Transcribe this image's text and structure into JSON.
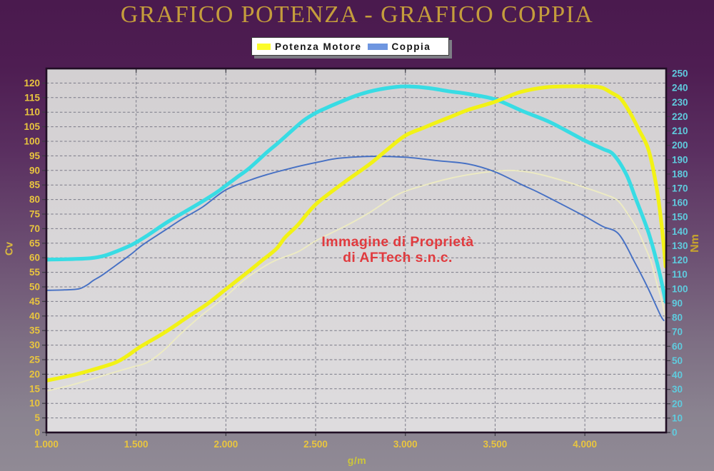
{
  "title": "GRAFICO POTENZA - GRAFICO COPPIA",
  "legend": {
    "items": [
      {
        "label": "Potenza Motore",
        "swatch_color": "#FCFC2A"
      },
      {
        "label": "Coppia",
        "swatch_color": "#6E96E0"
      }
    ]
  },
  "watermark": {
    "line1": "Immagine di Proprietà",
    "line2": "di AFTech s.n.c.",
    "color": "#E13B3F"
  },
  "colors": {
    "background_top": "#4A1A4E",
    "background_bottom": "#908A95",
    "plot_background_top": "#D3D0D2",
    "plot_background_bottom": "#DEDCDE",
    "plot_border": "#200E24",
    "gridline": "#7A7A87",
    "tick": "#3A3A42",
    "left_axis_labels": "#E9C53E",
    "right_axis_labels": "#5FCBDE",
    "x_axis_labels": "#E9C53E",
    "title_text": "#C59D3C"
  },
  "chart_data": {
    "type": "line",
    "title": "GRAFICO POTENZA - GRAFICO COPPIA",
    "xlabel": "g/m",
    "ylabel_left": "Cv",
    "ylabel_right": "Nm",
    "xlim": [
      1000,
      4453
    ],
    "ylim_left": [
      0,
      125
    ],
    "ylim_right": [
      0,
      253.5
    ],
    "x_tick_values": [
      1000,
      1500,
      2000,
      2500,
      3000,
      3500,
      4000
    ],
    "x_tick_labels": [
      "1.000",
      "1.500",
      "2.000",
      "2.500",
      "3.000",
      "3.500",
      "4.000"
    ],
    "left_ticks": {
      "min": 0,
      "max": 120,
      "step": 5
    },
    "right_ticks": {
      "min": 0,
      "max": 250,
      "step": 10
    },
    "grid": {
      "x_step": 500,
      "y_left_step": 5,
      "style": "dashed"
    },
    "legend_position": "top-center",
    "series": [
      {
        "id": "potenza-originale",
        "legend": "",
        "axis": "left",
        "unit": "Cv",
        "color": "#EDEBC2",
        "width": 1.9,
        "points": [
          [
            1000,
            14.2
          ],
          [
            1140,
            16.3
          ],
          [
            1250,
            18.3
          ],
          [
            1380,
            20.7
          ],
          [
            1480,
            22.5
          ],
          [
            1560,
            24.0
          ],
          [
            1650,
            28.0
          ],
          [
            1750,
            34.0
          ],
          [
            1860,
            40.0
          ],
          [
            2000,
            46.8
          ],
          [
            2110,
            52.8
          ],
          [
            2200,
            56.5
          ],
          [
            2280,
            59.2
          ],
          [
            2400,
            62.0
          ],
          [
            2500,
            65.8
          ],
          [
            2620,
            69.5
          ],
          [
            2700,
            72.0
          ],
          [
            2800,
            75.5
          ],
          [
            2960,
            81.8
          ],
          [
            3100,
            84.8
          ],
          [
            3250,
            87.3
          ],
          [
            3400,
            89.0
          ],
          [
            3570,
            90.0
          ],
          [
            3700,
            89.3
          ],
          [
            3850,
            87.0
          ],
          [
            4000,
            84.1
          ],
          [
            4100,
            82.0
          ],
          [
            4180,
            79.8
          ],
          [
            4240,
            75.0
          ],
          [
            4290,
            70.0
          ],
          [
            4330,
            64.5
          ],
          [
            4370,
            58.5
          ],
          [
            4400,
            51.5
          ],
          [
            4430,
            45.0
          ],
          [
            4450,
            39.5
          ]
        ]
      },
      {
        "id": "coppia-originale",
        "legend": "",
        "axis": "right",
        "unit": "Nm",
        "color": "#4670C4",
        "width": 1.9,
        "points": [
          [
            1000,
            99.0
          ],
          [
            1100,
            99.3
          ],
          [
            1180,
            100.0
          ],
          [
            1230,
            103.0
          ],
          [
            1260,
            105.8
          ],
          [
            1310,
            109.5
          ],
          [
            1390,
            116.7
          ],
          [
            1470,
            124.0
          ],
          [
            1540,
            131.0
          ],
          [
            1650,
            140.0
          ],
          [
            1760,
            149.0
          ],
          [
            1870,
            157.0
          ],
          [
            2000,
            169.0
          ],
          [
            2140,
            176.0
          ],
          [
            2240,
            180.0
          ],
          [
            2330,
            183.0
          ],
          [
            2420,
            185.8
          ],
          [
            2520,
            188.5
          ],
          [
            2630,
            191.0
          ],
          [
            2810,
            192.3
          ],
          [
            3000,
            191.7
          ],
          [
            3170,
            189.4
          ],
          [
            3350,
            187.0
          ],
          [
            3500,
            181.5
          ],
          [
            3650,
            172.5
          ],
          [
            3740,
            167.3
          ],
          [
            3870,
            159.0
          ],
          [
            4000,
            150.5
          ],
          [
            4100,
            143.5
          ],
          [
            4190,
            138.0
          ],
          [
            4280,
            118.0
          ],
          [
            4350,
            101.0
          ],
          [
            4420,
            82.0
          ],
          [
            4440,
            78.0
          ]
        ]
      },
      {
        "id": "coppia-elaborata",
        "legend": "Coppia",
        "axis": "right",
        "unit": "Nm",
        "color": "#38DCE4",
        "width": 5.2,
        "points": [
          [
            1000,
            120.4
          ],
          [
            1120,
            120.7
          ],
          [
            1240,
            121.3
          ],
          [
            1320,
            123.0
          ],
          [
            1400,
            126.6
          ],
          [
            1480,
            131.0
          ],
          [
            1560,
            137.0
          ],
          [
            1680,
            147.0
          ],
          [
            1830,
            158.0
          ],
          [
            1940,
            166.5
          ],
          [
            2000,
            172.0
          ],
          [
            2070,
            178.5
          ],
          [
            2130,
            184.0
          ],
          [
            2230,
            195.3
          ],
          [
            2280,
            200.5
          ],
          [
            2330,
            206.0
          ],
          [
            2430,
            217.0
          ],
          [
            2500,
            222.5
          ],
          [
            2550,
            225.5
          ],
          [
            2620,
            229.3
          ],
          [
            2730,
            234.8
          ],
          [
            2830,
            238.3
          ],
          [
            2950,
            240.7
          ],
          [
            3020,
            241.0
          ],
          [
            3130,
            239.9
          ],
          [
            3250,
            237.5
          ],
          [
            3350,
            235.8
          ],
          [
            3500,
            232.0
          ],
          [
            3650,
            224.0
          ],
          [
            3790,
            217.0
          ],
          [
            3900,
            210.0
          ],
          [
            4000,
            203.3
          ],
          [
            4100,
            197.5
          ],
          [
            4160,
            193.5
          ],
          [
            4230,
            180.0
          ],
          [
            4280,
            164.0
          ],
          [
            4350,
            141.0
          ],
          [
            4390,
            124.0
          ],
          [
            4420,
            109.0
          ],
          [
            4450,
            91.0
          ]
        ]
      },
      {
        "id": "potenza-motore-elaborata",
        "legend": "Potenza Motore",
        "axis": "left",
        "unit": "Cv",
        "color": "#F2F215",
        "width": 5.2,
        "points": [
          [
            1000,
            17.8
          ],
          [
            1140,
            19.6
          ],
          [
            1250,
            21.4
          ],
          [
            1380,
            23.9
          ],
          [
            1450,
            26.3
          ],
          [
            1520,
            29.3
          ],
          [
            1660,
            34.4
          ],
          [
            1800,
            40.2
          ],
          [
            1900,
            44.3
          ],
          [
            2000,
            49.2
          ],
          [
            2110,
            54.5
          ],
          [
            2200,
            59.0
          ],
          [
            2280,
            63.0
          ],
          [
            2330,
            67.0
          ],
          [
            2400,
            71.2
          ],
          [
            2500,
            78.3
          ],
          [
            2650,
            85.5
          ],
          [
            2800,
            92.1
          ],
          [
            2900,
            97.2
          ],
          [
            3000,
            102.0
          ],
          [
            3100,
            104.6
          ],
          [
            3170,
            106.4
          ],
          [
            3260,
            108.6
          ],
          [
            3350,
            110.8
          ],
          [
            3500,
            113.6
          ],
          [
            3640,
            116.9
          ],
          [
            3790,
            118.6
          ],
          [
            3950,
            118.9
          ],
          [
            4050,
            118.8
          ],
          [
            4100,
            118.3
          ],
          [
            4150,
            116.6
          ],
          [
            4200,
            114.6
          ],
          [
            4250,
            110.0
          ],
          [
            4300,
            104.1
          ],
          [
            4355,
            97.0
          ],
          [
            4400,
            84.0
          ],
          [
            4430,
            70.0
          ],
          [
            4450,
            57.0
          ]
        ]
      }
    ]
  }
}
